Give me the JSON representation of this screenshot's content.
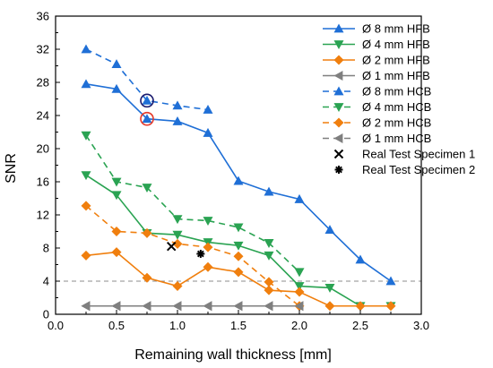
{
  "chart_data": {
    "type": "line",
    "title": "",
    "xlabel": "Remaining wall thickness [mm]",
    "ylabel": "SNR",
    "xlim": [
      0.0,
      3.0
    ],
    "ylim": [
      0,
      36
    ],
    "xticks": [
      "0.0",
      "0.5",
      "1.0",
      "1.5",
      "2.0",
      "2.5",
      "3.0"
    ],
    "yticks": [
      "0",
      "4",
      "8",
      "12",
      "16",
      "20",
      "24",
      "28",
      "32",
      "36"
    ],
    "reference_line_y": 4,
    "legend_position": "top-right",
    "series": [
      {
        "name": "Ø 8 mm HFB",
        "color": "#1f6fd6",
        "marker": "triangle-up",
        "dash": "solid",
        "x": [
          0.25,
          0.5,
          0.75,
          1.0,
          1.25,
          1.5,
          1.75,
          2.0,
          2.25,
          2.5,
          2.75
        ],
        "y": [
          27.8,
          27.2,
          23.6,
          23.3,
          21.9,
          16.1,
          14.8,
          13.9,
          10.2,
          6.6,
          4.0
        ]
      },
      {
        "name": "Ø 4 mm HFB",
        "color": "#2aa352",
        "marker": "triangle-down",
        "dash": "solid",
        "x": [
          0.25,
          0.5,
          0.75,
          1.0,
          1.25,
          1.5,
          1.75,
          2.0,
          2.25,
          2.5,
          2.75
        ],
        "y": [
          16.8,
          14.4,
          9.8,
          9.6,
          8.7,
          8.3,
          7.1,
          3.4,
          3.2,
          1.0,
          1.0
        ]
      },
      {
        "name": "Ø 2 mm HFB",
        "color": "#f07f0e",
        "marker": "diamond",
        "dash": "solid",
        "x": [
          0.25,
          0.5,
          0.75,
          1.0,
          1.25,
          1.5,
          1.75,
          2.0,
          2.25,
          2.5,
          2.75
        ],
        "y": [
          7.1,
          7.5,
          4.4,
          3.4,
          5.7,
          5.1,
          2.9,
          2.7,
          1.0,
          1.0,
          1.0
        ]
      },
      {
        "name": "Ø 1 mm HFB",
        "color": "#7f7f7f",
        "marker": "triangle-left",
        "dash": "solid",
        "x": [
          0.25,
          0.5,
          0.75,
          1.0,
          1.25,
          1.5,
          1.75,
          2.0
        ],
        "y": [
          1.0,
          1.0,
          1.0,
          1.0,
          1.0,
          1.0,
          1.0,
          1.0
        ]
      },
      {
        "name": "Ø 8 mm HCB",
        "color": "#1f6fd6",
        "marker": "triangle-up",
        "dash": "dashed",
        "x": [
          0.25,
          0.5,
          0.75,
          1.0,
          1.25
        ],
        "y": [
          32.0,
          30.2,
          25.8,
          25.2,
          24.7
        ]
      },
      {
        "name": "Ø 4 mm HCB",
        "color": "#2aa352",
        "marker": "triangle-down",
        "dash": "dashed",
        "x": [
          0.25,
          0.5,
          0.75,
          1.0,
          1.25,
          1.5,
          1.75,
          2.0
        ],
        "y": [
          21.6,
          16.0,
          15.3,
          11.5,
          11.3,
          10.5,
          8.6,
          5.1
        ]
      },
      {
        "name": "Ø 2 mm HCB",
        "color": "#f07f0e",
        "marker": "diamond",
        "dash": "dashed",
        "x": [
          0.25,
          0.5,
          0.75,
          1.0,
          1.25,
          1.5,
          1.75,
          2.0
        ],
        "y": [
          13.1,
          10.0,
          9.8,
          8.5,
          8.1,
          7.0,
          3.9,
          1.0
        ]
      },
      {
        "name": "Ø 1 mm HCB",
        "color": "#7f7f7f",
        "marker": "triangle-left",
        "dash": "dashed",
        "x": [
          0.25,
          0.5,
          0.75,
          1.0,
          1.25,
          1.5,
          1.75,
          2.0
        ],
        "y": [
          1.0,
          1.0,
          1.0,
          1.0,
          1.0,
          1.0,
          1.0,
          1.0
        ]
      }
    ],
    "specimens": [
      {
        "name": "Real Test Specimen 1",
        "marker": "x",
        "x": 0.95,
        "y": 8.2
      },
      {
        "name": "Real Test Specimen 2",
        "marker": "asterisk",
        "x": 1.19,
        "y": 7.3
      }
    ],
    "highlight_circles": [
      {
        "x": 0.75,
        "y": 25.8,
        "color": "#1a1a6e"
      },
      {
        "x": 0.75,
        "y": 23.6,
        "color": "#e53a2a"
      }
    ]
  }
}
